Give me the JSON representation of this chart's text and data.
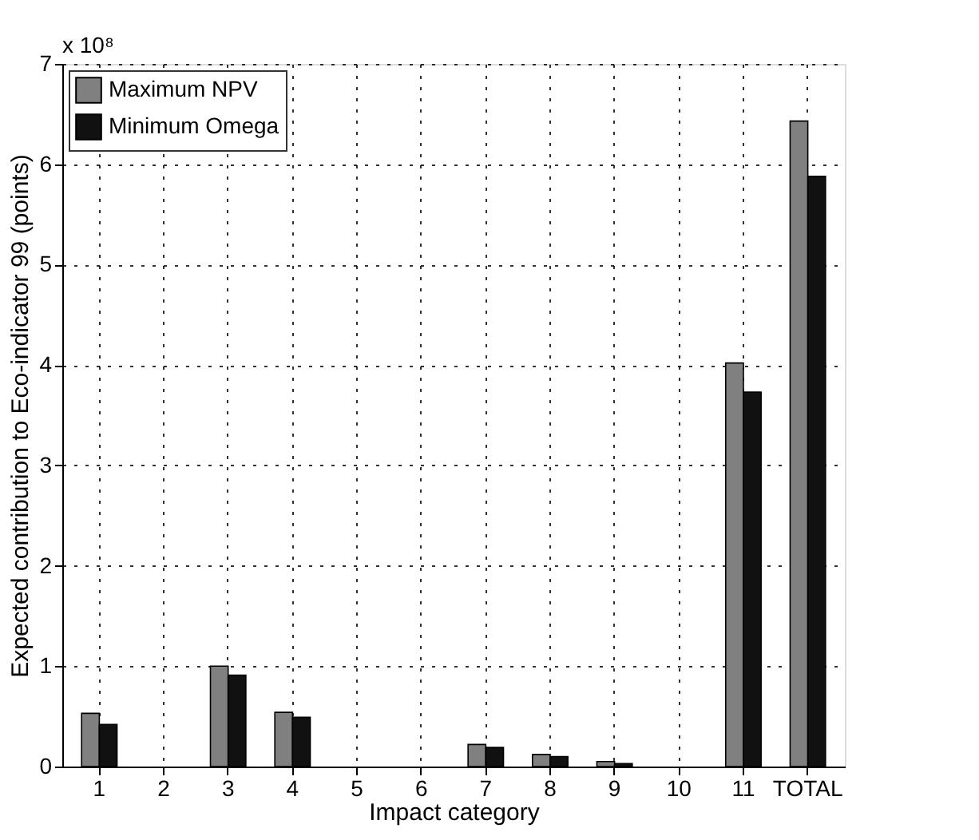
{
  "chart_data": {
    "type": "bar",
    "xlabel": "Impact category",
    "ylabel": "Expected contribution to Eco-indicator 99 (points)",
    "categories": [
      "1",
      "2",
      "3",
      "4",
      "5",
      "6",
      "7",
      "8",
      "9",
      "10",
      "11",
      "TOTAL"
    ],
    "series": [
      {
        "name": "Maximum NPV",
        "color": "#808080",
        "values": [
          0.53,
          0,
          1.0,
          0.54,
          0,
          0,
          0.22,
          0.12,
          0.05,
          0,
          4.02,
          6.43
        ]
      },
      {
        "name": "Minimum Omega",
        "color": "#111111",
        "values": [
          0.42,
          0,
          0.91,
          0.49,
          0,
          0,
          0.19,
          0.1,
          0.03,
          0,
          3.73,
          5.88
        ]
      }
    ],
    "ylim": [
      0,
      7
    ],
    "yticks": [
      0,
      1,
      2,
      3,
      4,
      5,
      6,
      7
    ],
    "annotations": [
      "x 10⁸"
    ],
    "grid": true,
    "legend": "top left"
  }
}
